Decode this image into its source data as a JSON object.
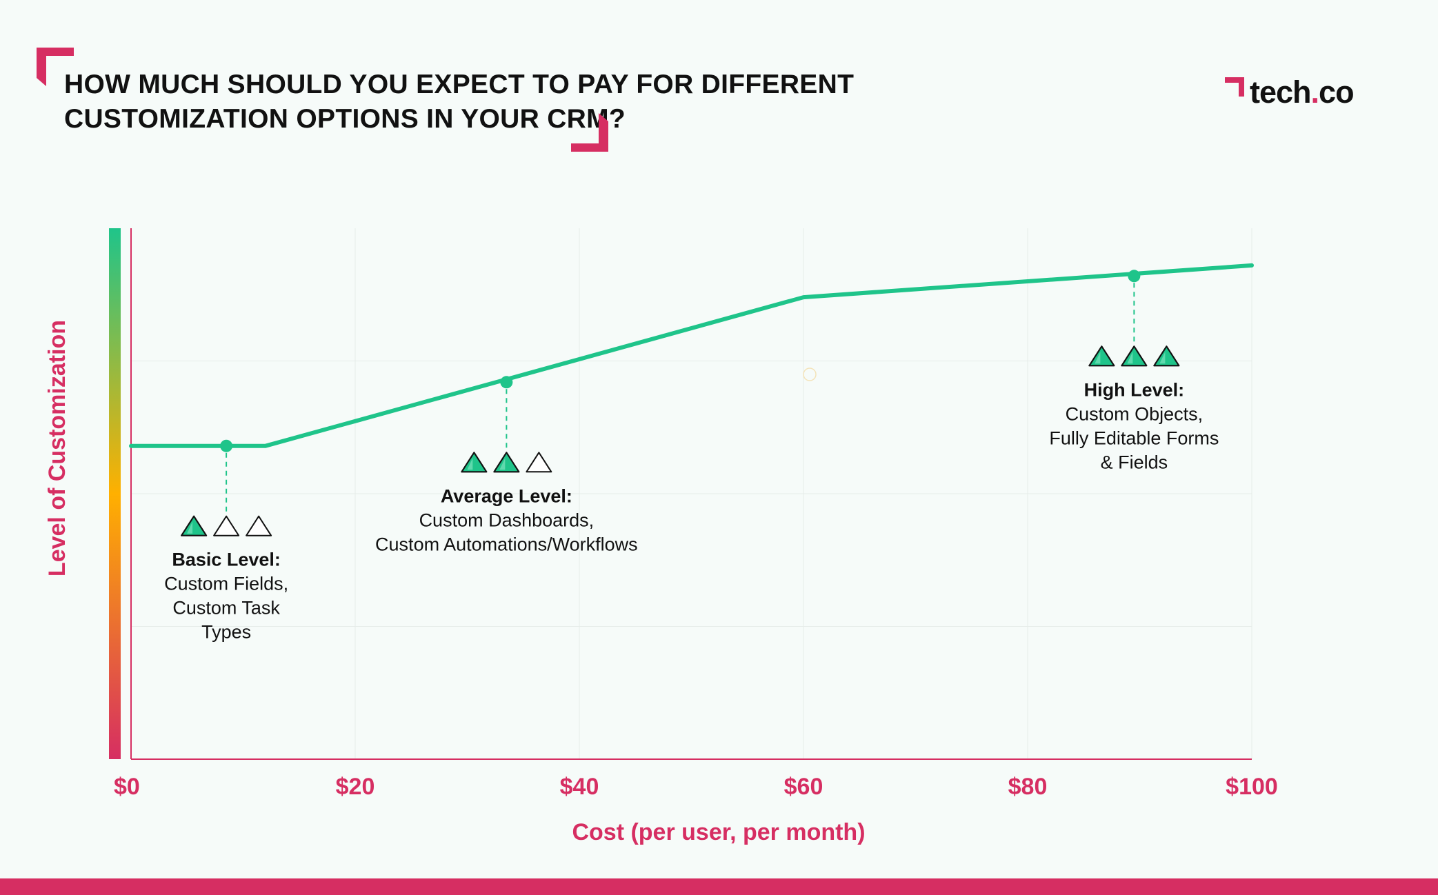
{
  "header": {
    "title_line1": "HOW MUCH SHOULD YOU EXPECT TO PAY FOR DIFFERENT",
    "title_line2": "CUSTOMIZATION OPTIONS IN YOUR CRM?",
    "logo_text_main": "tech",
    "logo_text_dot": ".",
    "logo_text_end": "co"
  },
  "colors": {
    "accent": "#d62e62",
    "line": "#1fc48a",
    "text": "#111111",
    "grid": "#e6ece9",
    "background": "#f6fbf9"
  },
  "chart_data": {
    "type": "line",
    "title": "HOW MUCH SHOULD YOU EXPECT TO PAY FOR DIFFERENT CUSTOMIZATION OPTIONS IN YOUR CRM?",
    "xlabel": "Cost (per user, per month)",
    "ylabel": "Level of Customization",
    "xlim": [
      0,
      100
    ],
    "ylim": [
      0,
      100
    ],
    "xticks": [
      0,
      20,
      40,
      60,
      80,
      100
    ],
    "xtick_labels": [
      "$0",
      "$20",
      "$40",
      "$60",
      "$80",
      "$100"
    ],
    "grid": true,
    "series": [
      {
        "name": "Customization level",
        "x": [
          0,
          12,
          60,
          100
        ],
        "y": [
          59,
          59,
          87,
          93
        ]
      }
    ],
    "annotations": [
      {
        "x": 8.5,
        "y": 59,
        "filled_triangles": 1,
        "total_triangles": 3,
        "heading": "Basic Level:",
        "lines": [
          "Custom Fields,",
          "Custom Task",
          "Types"
        ]
      },
      {
        "x": 33.5,
        "y": 71,
        "filled_triangles": 2,
        "total_triangles": 3,
        "heading": "Average Level:",
        "lines": [
          "Custom Dashboards,",
          "Custom Automations/Workflows"
        ]
      },
      {
        "x": 89.5,
        "y": 91,
        "filled_triangles": 3,
        "total_triangles": 3,
        "heading": "High Level:",
        "lines": [
          "Custom Objects,",
          "Fully Editable Forms",
          "& Fields"
        ]
      }
    ]
  }
}
